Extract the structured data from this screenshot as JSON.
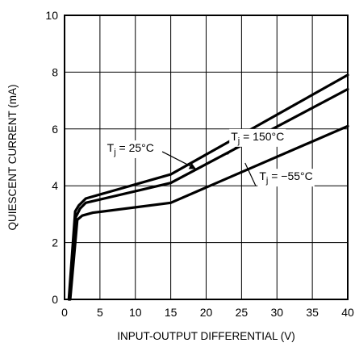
{
  "chart_data": {
    "type": "line",
    "xlabel": "INPUT-OUTPUT DIFFERENTIAL (V)",
    "ylabel": "QUIESCENT CURRENT (mA)",
    "xlim": [
      0,
      40
    ],
    "ylim": [
      0,
      10
    ],
    "xticks": [
      0,
      5,
      10,
      15,
      20,
      25,
      30,
      35,
      40
    ],
    "yticks": [
      0,
      2,
      4,
      6,
      8,
      10
    ],
    "xtick_labels": [
      "0",
      "5",
      "10",
      "15",
      "20",
      "25",
      "30",
      "35",
      "40"
    ],
    "ytick_labels": [
      "0",
      "2",
      "4",
      "6",
      "8",
      "10"
    ],
    "grid": true,
    "series": [
      {
        "key": "t150",
        "label_prefix": "T",
        "label_sub": "j",
        "label_suffix": " = 150°C",
        "x": [
          0.6,
          1.5,
          2.0,
          3.0,
          15,
          40
        ],
        "y": [
          0,
          3.1,
          3.3,
          3.55,
          4.4,
          7.9
        ]
      },
      {
        "key": "t25",
        "label_prefix": "T",
        "label_sub": "j",
        "label_suffix": " = 25°C",
        "x": [
          0.7,
          1.6,
          2.2,
          3.0,
          15,
          40
        ],
        "y": [
          0,
          2.9,
          3.2,
          3.4,
          4.1,
          7.4
        ]
      },
      {
        "key": "tm55",
        "label_prefix": "T",
        "label_sub": "j",
        "label_suffix": " = −55°C",
        "x": [
          0.8,
          1.8,
          2.5,
          4.0,
          15,
          40
        ],
        "y": [
          0,
          2.8,
          2.95,
          3.05,
          3.4,
          6.1
        ]
      }
    ],
    "annotations": [
      {
        "series": "t150",
        "text_at": [
          23.5,
          5.6
        ],
        "leader_from": [
          24.8,
          5.5
        ],
        "leader_to": [
          23.0,
          5.1
        ]
      },
      {
        "series": "t25",
        "text_at": [
          6.0,
          5.2
        ],
        "leader_from": [
          13.8,
          5.2
        ],
        "leader_to": [
          18.5,
          4.6
        ],
        "arrow": true
      },
      {
        "series": "tm55",
        "text_at": [
          27.5,
          4.2
        ],
        "leader_from": [
          27.0,
          4.0
        ],
        "leader_to": [
          25.5,
          4.8
        ]
      }
    ]
  }
}
